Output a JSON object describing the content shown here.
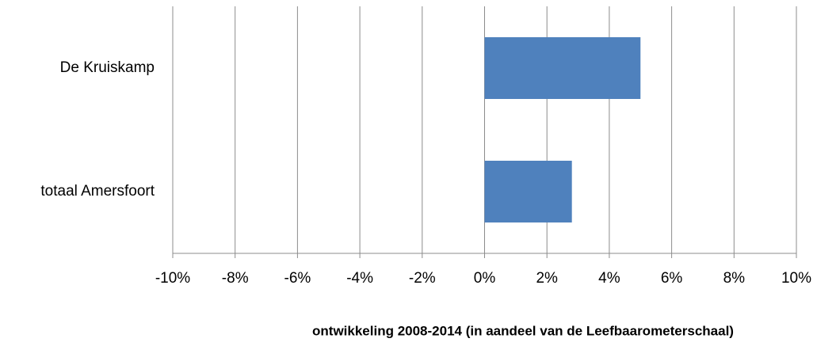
{
  "chart_data": {
    "type": "bar",
    "orientation": "horizontal",
    "categories": [
      "De Kruiskamp",
      "totaal Amersfoort"
    ],
    "values": [
      5.0,
      2.8
    ],
    "color": "#4f81bd",
    "xlabel": "ontwikkeling 2008-2014 (in aandeel van de Leefbaarometerschaal)",
    "xlim": [
      -10,
      10
    ],
    "xticks": [
      {
        "value": -10,
        "label": "-10%"
      },
      {
        "value": -8,
        "label": "-8%"
      },
      {
        "value": -6,
        "label": "-6%"
      },
      {
        "value": -4,
        "label": "-4%"
      },
      {
        "value": -2,
        "label": "-2%"
      },
      {
        "value": 0,
        "label": "0%"
      },
      {
        "value": 2,
        "label": "2%"
      },
      {
        "value": 4,
        "label": "4%"
      },
      {
        "value": 6,
        "label": "6%"
      },
      {
        "value": 8,
        "label": "8%"
      },
      {
        "value": 10,
        "label": "10%"
      }
    ],
    "grid": true
  }
}
